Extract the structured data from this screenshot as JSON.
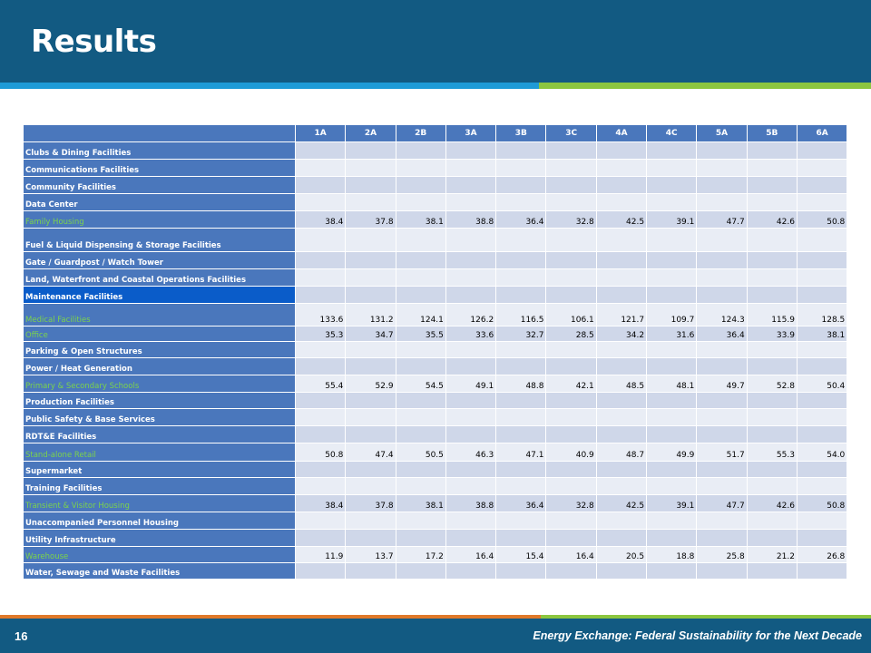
{
  "title": "Results",
  "footer": {
    "page_number": "16",
    "text": "Energy Exchange: Federal Sustainability for the Next Decade"
  },
  "colors": {
    "header_bg": "#125A82",
    "accent_blue": "#1E9BD7",
    "accent_green": "#8CC63F",
    "accent_orange": "#E0792A",
    "table_header": "#4A77BC",
    "green_label": "#7CD34C"
  },
  "table": {
    "columns": [
      "1A",
      "2A",
      "2B",
      "3A",
      "3B",
      "3C",
      "4A",
      "4C",
      "5A",
      "5B",
      "6A"
    ],
    "rows": [
      {
        "label": "Clubs & Dining Facilities",
        "values": []
      },
      {
        "label": "Communications  Facilities",
        "values": []
      },
      {
        "label": "Community Facilities",
        "values": []
      },
      {
        "label": "Data Center",
        "values": []
      },
      {
        "label": "Family Housing",
        "highlight": true,
        "values": [
          "38.4",
          "37.8",
          "38.1",
          "38.8",
          "36.4",
          "32.8",
          "42.5",
          "39.1",
          "47.7",
          "42.6",
          "50.8"
        ]
      },
      {
        "label": "Fuel & Liquid Dispensing & Storage Facilities",
        "values": []
      },
      {
        "label": "Gate / Guardpost  / Watch Tower",
        "values": []
      },
      {
        "label": "Land, Waterfront and Coastal Operations  Facilities",
        "values": []
      },
      {
        "label": "Maintenance Facilities",
        "selected": true,
        "values": []
      },
      {
        "label": "Medical Facilities",
        "highlight": true,
        "values": [
          "133.6",
          "131.2",
          "124.1",
          "126.2",
          "116.5",
          "106.1",
          "121.7",
          "109.7",
          "124.3",
          "115.9",
          "128.5"
        ]
      },
      {
        "label": "Office",
        "highlight": true,
        "values": [
          "35.3",
          "34.7",
          "35.5",
          "33.6",
          "32.7",
          "28.5",
          "34.2",
          "31.6",
          "36.4",
          "33.9",
          "38.1"
        ]
      },
      {
        "label": "Parking & Open Structures",
        "values": []
      },
      {
        "label": "Power  / Heat Generation",
        "values": []
      },
      {
        "label": "Primary & Secondary Schools",
        "highlight": true,
        "values": [
          "55.4",
          "52.9",
          "54.5",
          "49.1",
          "48.8",
          "42.1",
          "48.5",
          "48.1",
          "49.7",
          "52.8",
          "50.4"
        ]
      },
      {
        "label": "Production  Facilities",
        "values": []
      },
      {
        "label": "Public Safety & Base Services",
        "values": []
      },
      {
        "label": "RDT&E Facilities",
        "values": []
      },
      {
        "label": "Stand-alone Retail",
        "highlight": true,
        "values": [
          "50.8",
          "47.4",
          "50.5",
          "46.3",
          "47.1",
          "40.9",
          "48.7",
          "49.9",
          "51.7",
          "55.3",
          "54.0"
        ]
      },
      {
        "label": "Supermarket",
        "values": []
      },
      {
        "label": "Training Facilities",
        "values": []
      },
      {
        "label": "Transient & Visitor Housing",
        "highlight": true,
        "values": [
          "38.4",
          "37.8",
          "38.1",
          "38.8",
          "36.4",
          "32.8",
          "42.5",
          "39.1",
          "47.7",
          "42.6",
          "50.8"
        ]
      },
      {
        "label": "Unaccompanied  Personnel Housing",
        "values": []
      },
      {
        "label": "Utility Infrastructure",
        "values": []
      },
      {
        "label": "Warehouse",
        "highlight": true,
        "values": [
          "11.9",
          "13.7",
          "17.2",
          "16.4",
          "15.4",
          "16.4",
          "20.5",
          "18.8",
          "25.8",
          "21.2",
          "26.8"
        ]
      },
      {
        "label": "Water, Sewage and Waste Facilities",
        "values": []
      }
    ]
  }
}
